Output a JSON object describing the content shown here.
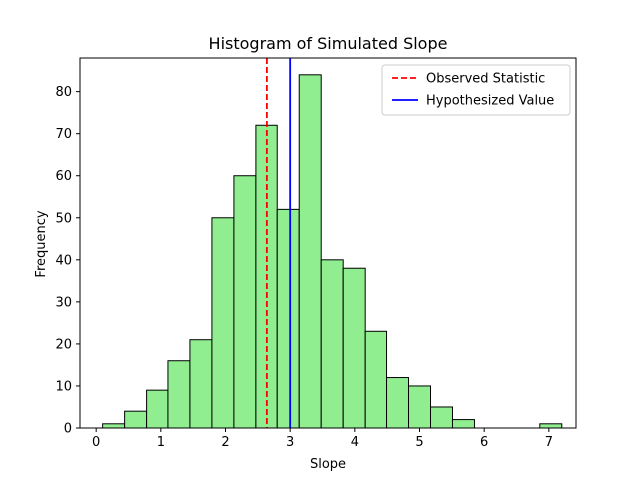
{
  "chart_data": {
    "type": "bar",
    "title": "Histogram of Simulated Slope",
    "xlabel": "Slope",
    "ylabel": "Frequency",
    "xlim": [
      -0.25,
      7.42
    ],
    "ylim": [
      0,
      88
    ],
    "xticks": [
      0,
      1,
      2,
      3,
      4,
      5,
      6,
      7
    ],
    "yticks": [
      0,
      10,
      20,
      30,
      40,
      50,
      60,
      70,
      80
    ],
    "bar_color": "#90ee90",
    "bar_edge_color": "#000000",
    "bins": [
      {
        "x0": 0.1,
        "x1": 0.44,
        "count": 1
      },
      {
        "x0": 0.44,
        "x1": 0.78,
        "count": 4
      },
      {
        "x0": 0.78,
        "x1": 1.11,
        "count": 9
      },
      {
        "x0": 1.11,
        "x1": 1.45,
        "count": 16
      },
      {
        "x0": 1.45,
        "x1": 1.79,
        "count": 21
      },
      {
        "x0": 1.79,
        "x1": 2.13,
        "count": 50
      },
      {
        "x0": 2.13,
        "x1": 2.47,
        "count": 60
      },
      {
        "x0": 2.47,
        "x1": 2.8,
        "count": 72
      },
      {
        "x0": 2.8,
        "x1": 3.14,
        "count": 52
      },
      {
        "x0": 3.14,
        "x1": 3.48,
        "count": 84
      },
      {
        "x0": 3.48,
        "x1": 3.82,
        "count": 40
      },
      {
        "x0": 3.82,
        "x1": 4.16,
        "count": 38
      },
      {
        "x0": 4.16,
        "x1": 4.49,
        "count": 23
      },
      {
        "x0": 4.49,
        "x1": 4.83,
        "count": 12
      },
      {
        "x0": 4.83,
        "x1": 5.17,
        "count": 10
      },
      {
        "x0": 5.17,
        "x1": 5.51,
        "count": 5
      },
      {
        "x0": 5.51,
        "x1": 5.85,
        "count": 2
      },
      {
        "x0": 5.85,
        "x1": 6.18,
        "count": 0
      },
      {
        "x0": 6.18,
        "x1": 6.52,
        "count": 0
      },
      {
        "x0": 6.52,
        "x1": 6.86,
        "count": 0
      },
      {
        "x0": 6.86,
        "x1": 7.2,
        "count": 1
      }
    ],
    "reference_lines": [
      {
        "name": "Observed Statistic",
        "x": 2.64,
        "color": "#ff0000",
        "style": "dashed"
      },
      {
        "name": "Hypothesized Value",
        "x": 3.0,
        "color": "#0000ff",
        "style": "solid"
      }
    ],
    "legend_position": "top-right",
    "grid": false
  }
}
